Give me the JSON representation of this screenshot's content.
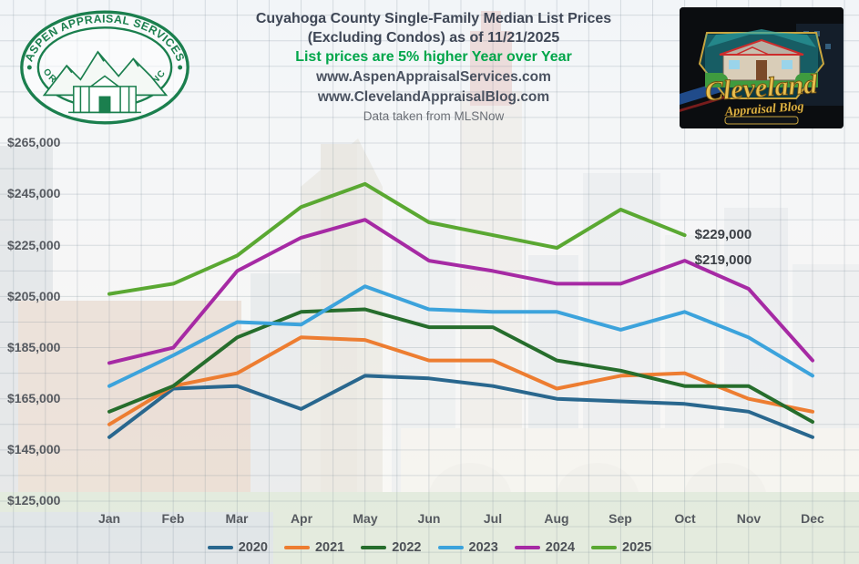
{
  "header": {
    "title_line1": "Cuyahoga County Single-Family Median List Prices",
    "title_line2": "(Excluding Condos) as of 11/21/2025",
    "highlight": "List prices are 5% higher Year over Year",
    "url1": "www.AspenAppraisalServices.com",
    "url2": "www.ClevelandAppraisalBlog.com",
    "source_note": "Data taken from MLSNow"
  },
  "logos": {
    "aspen": {
      "arc_top": "ASPEN APPRAISAL SERVICES",
      "arc_bottom": "FOR PEAK PERFORMANCE",
      "color": "#1b7f4e"
    },
    "cleveland": {
      "word1": "Cleveland",
      "word2": "Appraisal Blog",
      "gold": "#e8bf4e"
    }
  },
  "chart_data": {
    "type": "line",
    "title": "Cuyahoga County Single-Family Median List Prices (Excluding Condos) as of 11/21/2025",
    "x_categories": [
      "Jan",
      "Feb",
      "Mar",
      "Apr",
      "May",
      "Jun",
      "Jul",
      "Aug",
      "Sep",
      "Oct",
      "Nov",
      "Dec"
    ],
    "y_tick_labels": [
      "$265,000",
      "$245,000",
      "$225,000",
      "$205,000",
      "$185,000",
      "$165,000",
      "$145,000",
      "$125,000"
    ],
    "ylim": [
      125000,
      265000
    ],
    "grid": true,
    "legend_position": "bottom",
    "series": [
      {
        "name": "2020",
        "color": "#29678e",
        "values": [
          150000,
          169000,
          170000,
          161000,
          174000,
          173000,
          170000,
          165000,
          164000,
          163000,
          160000,
          150000
        ]
      },
      {
        "name": "2021",
        "color": "#ed7d31",
        "values": [
          155000,
          170000,
          175000,
          189000,
          188000,
          180000,
          180000,
          169000,
          174000,
          175000,
          165000,
          160000
        ]
      },
      {
        "name": "2022",
        "color": "#266d2c",
        "values": [
          160000,
          170000,
          189000,
          199000,
          200000,
          193000,
          193000,
          180000,
          176000,
          170000,
          170000,
          156000
        ]
      },
      {
        "name": "2023",
        "color": "#3ca3dc",
        "values": [
          170000,
          182000,
          195000,
          194000,
          209000,
          200000,
          199000,
          199000,
          192000,
          199000,
          189000,
          174000
        ]
      },
      {
        "name": "2024",
        "color": "#a62aa4",
        "values": [
          179000,
          185000,
          215000,
          228000,
          235000,
          219000,
          215000,
          210000,
          210000,
          219000,
          208000,
          180000
        ]
      },
      {
        "name": "2025",
        "color": "#5aa832",
        "values": [
          206000,
          210000,
          221000,
          240000,
          249000,
          234000,
          229000,
          224000,
          239000,
          229000
        ]
      }
    ],
    "annotations": [
      {
        "text": "$229,000",
        "series": "2025",
        "month": "Oct"
      },
      {
        "text": "$219,000",
        "series": "2024",
        "month": "Oct"
      }
    ]
  }
}
